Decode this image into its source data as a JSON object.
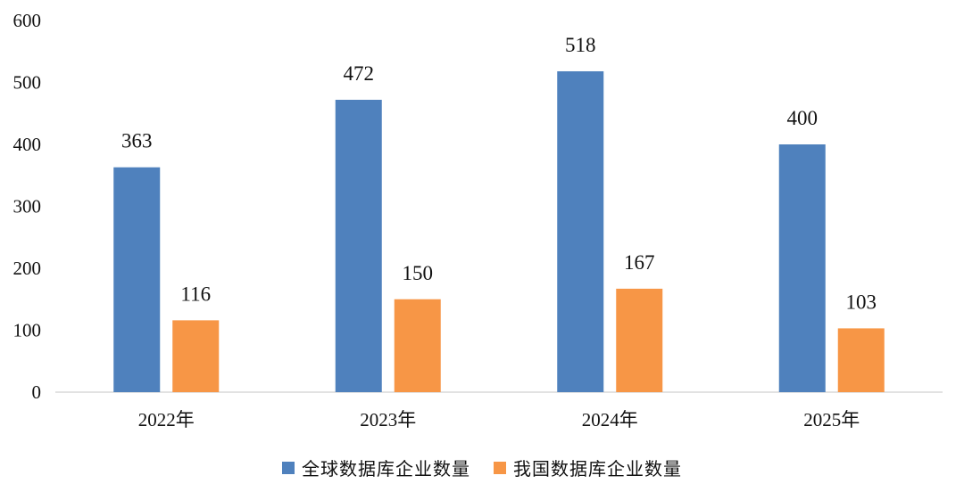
{
  "chart_data": {
    "type": "bar",
    "categories": [
      "2022年",
      "2023年",
      "2024年",
      "2025年"
    ],
    "series": [
      {
        "name": "全球数据库企业数量",
        "values": [
          363,
          472,
          518,
          400
        ],
        "color": "#4f81bd"
      },
      {
        "name": "我国数据库企业数量",
        "values": [
          116,
          150,
          167,
          103
        ],
        "color": "#f79646"
      }
    ],
    "ylim": [
      0,
      600
    ],
    "yticks": [
      "0",
      "100",
      "200",
      "300",
      "400",
      "500",
      "600"
    ],
    "grid": false,
    "legend_position": "bottom",
    "title": "",
    "xlabel": "",
    "ylabel": ""
  }
}
